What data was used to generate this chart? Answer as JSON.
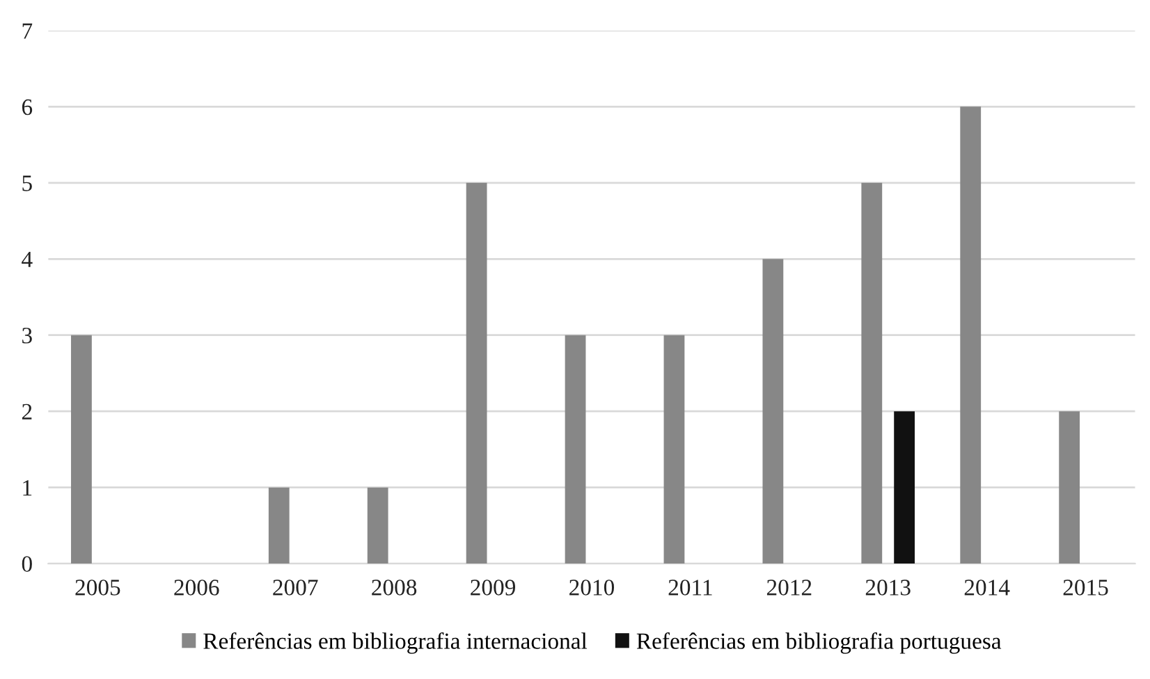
{
  "chart_data": {
    "type": "bar",
    "categories": [
      "2005",
      "2006",
      "2007",
      "2008",
      "2009",
      "2010",
      "2011",
      "2012",
      "2013",
      "2014",
      "2015"
    ],
    "series": [
      {
        "name": "Referências em bibliografia internacional",
        "color": "#878787",
        "values": [
          3,
          0,
          1,
          1,
          5,
          3,
          3,
          4,
          5,
          6,
          2
        ]
      },
      {
        "name": "Referências em bibliografia portuguesa",
        "color": "#111111",
        "values": [
          0,
          0,
          0,
          0,
          0,
          0,
          0,
          0,
          2,
          0,
          0
        ]
      }
    ],
    "ylim": [
      0,
      7
    ],
    "yticks": [
      0,
      1,
      2,
      3,
      4,
      5,
      6,
      7
    ],
    "grid": "y",
    "legend": "bottom"
  }
}
